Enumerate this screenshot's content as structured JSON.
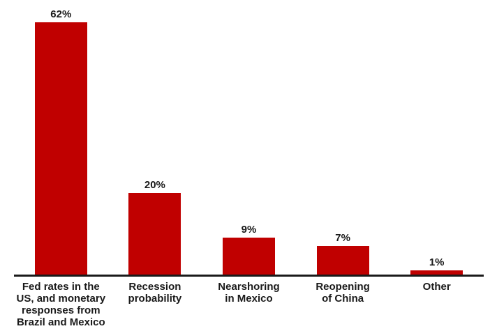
{
  "chart_data": {
    "type": "bar",
    "categories": [
      "Fed rates in the\nUS, and monetary\nresponses from\nBrazil and Mexico",
      "Recession\nprobability",
      "Nearshoring\nin Mexico",
      "Reopening\nof China",
      "Other"
    ],
    "values": [
      62,
      20,
      9,
      7,
      1
    ],
    "value_labels": [
      "62%",
      "20%",
      "9%",
      "7%",
      "1%"
    ],
    "bar_color": "#c00000",
    "axis_color": "#1a1a1a",
    "text_color": "#1a1a1a",
    "grid": false,
    "legend": false,
    "value_axis_visible": false
  }
}
